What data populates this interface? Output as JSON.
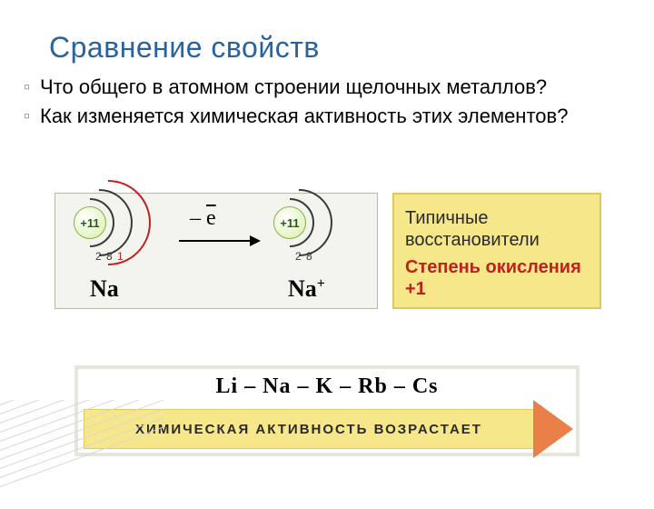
{
  "title": "Сравнение свойств",
  "bullets": [
    "Что общего в атомном строении щелочных металлов?",
    "Как изменяется химическая активность этих элементов?"
  ],
  "atom_panel": {
    "bg": "#f4f4ef",
    "border": "#b8b8b0",
    "na": {
      "nucleus_text": "+11",
      "nucleus_fill": "#d8f0a8",
      "nucleus_stroke": "#88b048",
      "shells": [
        {
          "r": 26,
          "color": "#3a3a3a",
          "count": "2"
        },
        {
          "r": 36,
          "color": "#3a3a3a",
          "count": "8"
        },
        {
          "r": 46,
          "color": "#c02020",
          "count": "1"
        }
      ],
      "label": "Na"
    },
    "arrow_text": "– ē",
    "na_plus": {
      "nucleus_text": "+11",
      "nucleus_fill": "#d8f0a8",
      "nucleus_stroke": "#88b048",
      "shells": [
        {
          "r": 26,
          "color": "#3a3a3a",
          "count": "2"
        },
        {
          "r": 36,
          "color": "#3a3a3a",
          "count": "8"
        }
      ],
      "label": "Na",
      "label_sup": "+"
    }
  },
  "redox": {
    "bg": "#f6e78a",
    "border": "#ddc95a",
    "line1": "Типичные восстановители",
    "line2": "Степень окисления +1",
    "line2_color": "#c02020"
  },
  "activity": {
    "series": "Li – Na – K – Rb – Cs",
    "label": "ХИМИЧЕСКАЯ  АКТИВНОСТЬ  ВОЗРАСТАЕТ",
    "arrow_fill": "#f6e78a",
    "arrow_border": "#ddc95a",
    "arrow_head_color": "#e88048",
    "body_width": 496
  },
  "decor_color": "#d8d8d4"
}
